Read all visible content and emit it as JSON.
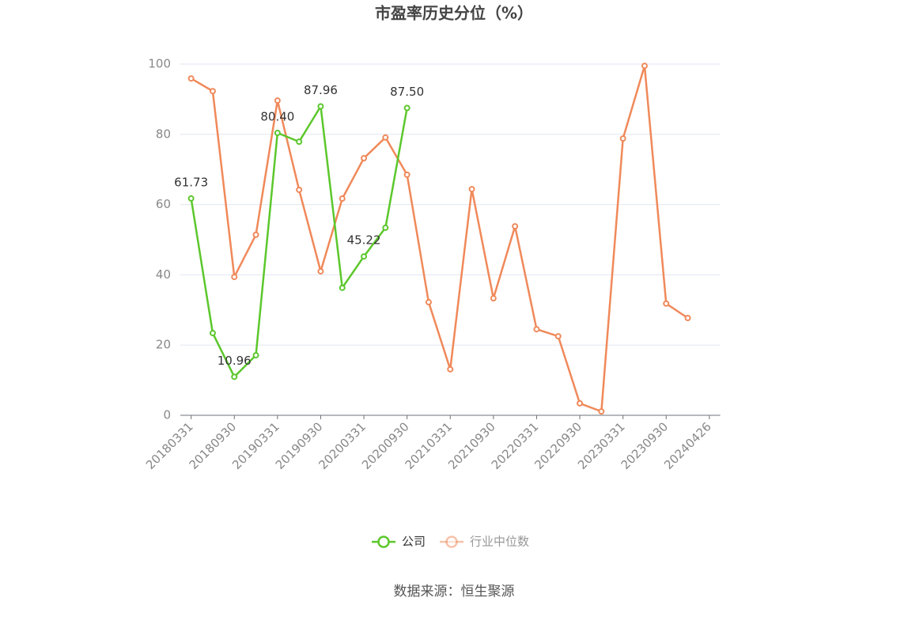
{
  "chart_data": {
    "type": "line",
    "title": "市盈率历史分位（%）",
    "categories": [
      "20180331",
      null,
      "20180930",
      null,
      "20190331",
      null,
      "20190930",
      null,
      "20200331",
      null,
      "20200930",
      null,
      "20210331",
      null,
      "20210930",
      null,
      "20220331",
      null,
      "20220930",
      null,
      "20230331",
      null,
      "20230930",
      null,
      "20240426"
    ],
    "series": [
      {
        "name": "公司",
        "color": "#5cc72c",
        "values": [
          61.73,
          23.4,
          10.96,
          17.1,
          80.4,
          77.9,
          87.96,
          36.3,
          45.22,
          53.4,
          87.5,
          null,
          null,
          null,
          null,
          null,
          null,
          null,
          null,
          null,
          null,
          null,
          null,
          null,
          null
        ],
        "value_labels": [
          "61.73",
          null,
          "10.96",
          null,
          "80.40",
          null,
          "87.96",
          null,
          "45.22",
          null,
          "87.50",
          null,
          null,
          null,
          null,
          null,
          null,
          null,
          null,
          null,
          null,
          null,
          null,
          null,
          null
        ]
      },
      {
        "name": "行业中位数",
        "color": "#f0895a",
        "values": [
          95.9,
          92.3,
          39.4,
          51.4,
          89.6,
          64.2,
          41.0,
          61.7,
          73.2,
          79.1,
          68.5,
          32.2,
          13.1,
          64.4,
          33.3,
          53.8,
          24.5,
          22.5,
          3.4,
          1.1,
          78.8,
          99.5,
          31.8,
          27.7,
          null
        ]
      }
    ],
    "ylim": [
      0,
      100
    ],
    "yticks": [
      0,
      20,
      40,
      60,
      80,
      100
    ],
    "grid": true,
    "source": "数据来源：恒生聚源"
  }
}
